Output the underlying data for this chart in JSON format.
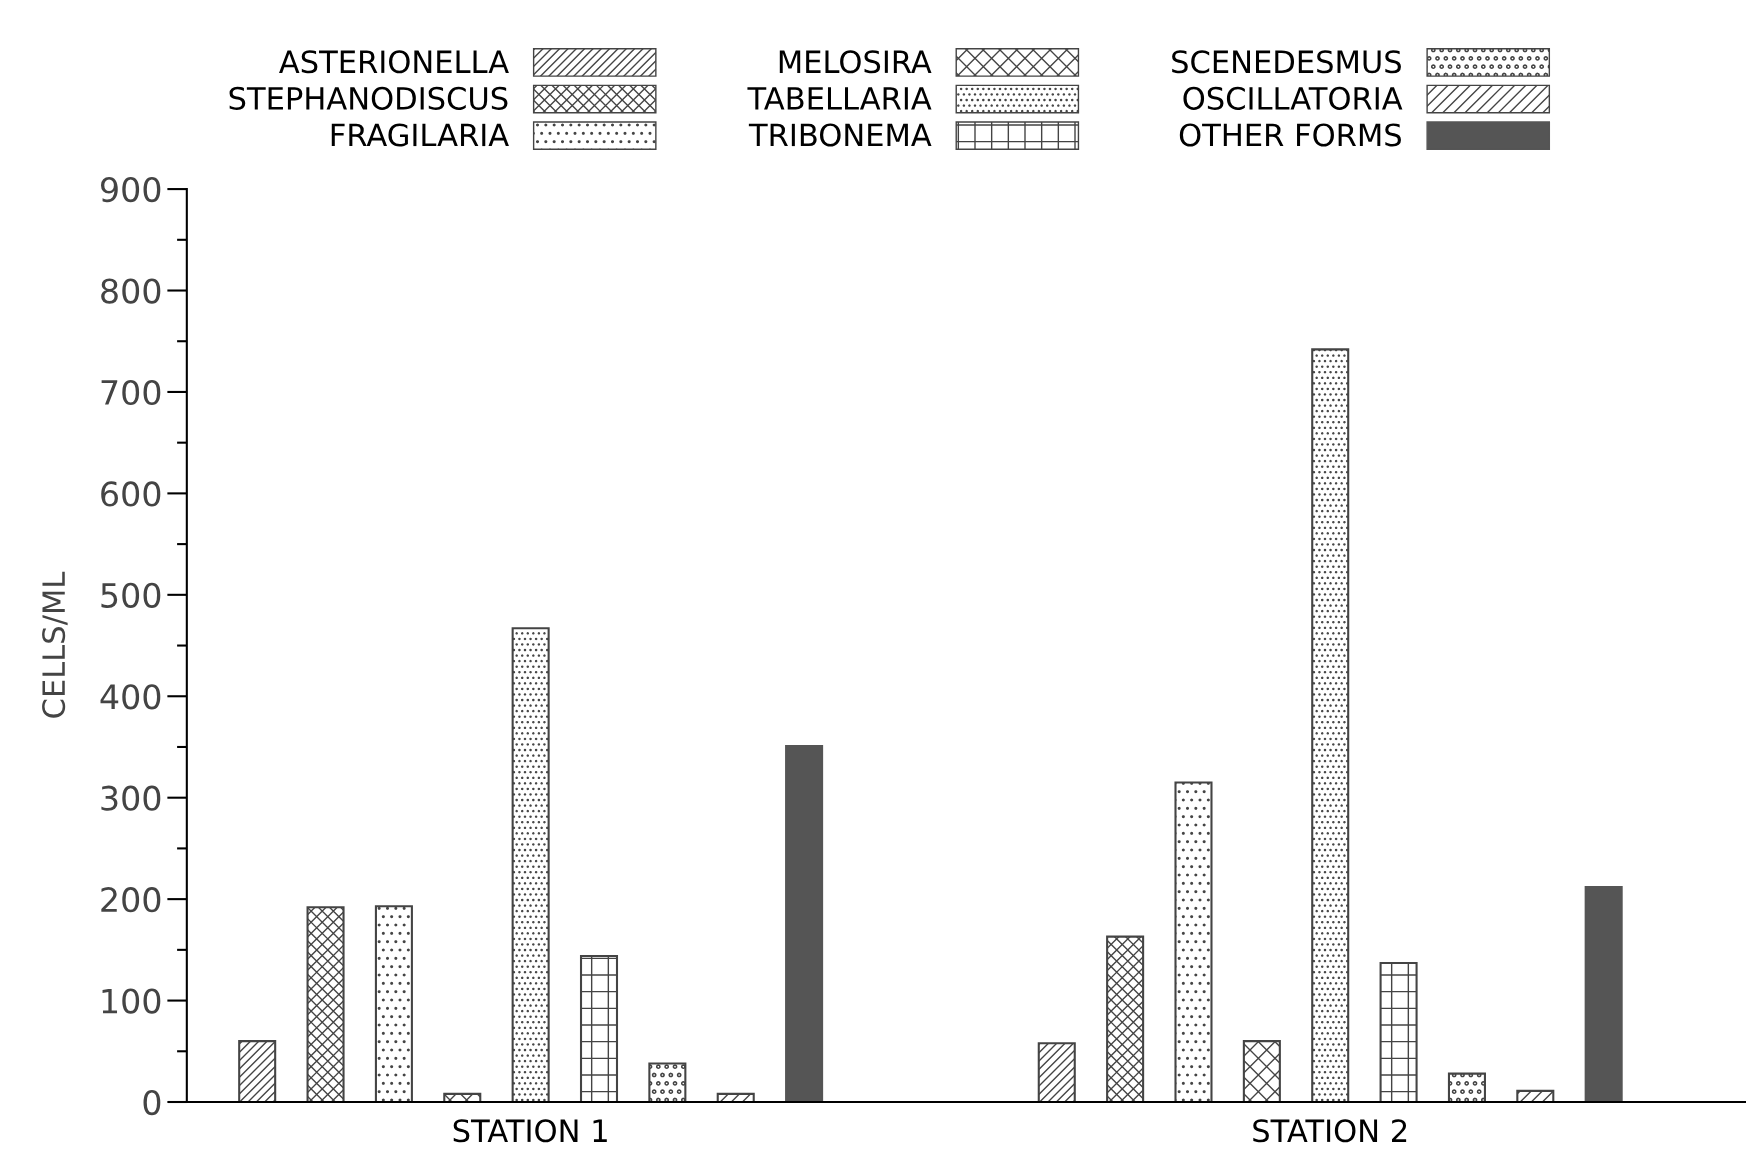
{
  "chart_data": {
    "type": "bar",
    "ylabel": "CELLS/ML",
    "categories": [
      "STATION 1",
      "STATION 2"
    ],
    "series": [
      {
        "name": "ASTERIONELLA",
        "color": "#444444",
        "values": [
          60,
          58
        ]
      },
      {
        "name": "STEPHANODISCUS",
        "color": "#444444",
        "values": [
          192,
          163
        ]
      },
      {
        "name": "FRAGILARIA",
        "color": "#444444",
        "values": [
          193,
          315
        ]
      },
      {
        "name": "MELOSIRA",
        "color": "#444444",
        "values": [
          8,
          60
        ]
      },
      {
        "name": "TABELLARIA",
        "color": "#444444",
        "values": [
          467,
          742
        ]
      },
      {
        "name": "TRIBONEMA",
        "color": "#444444",
        "values": [
          144,
          137
        ]
      },
      {
        "name": "SCENEDESMUS",
        "color": "#444444",
        "values": [
          38,
          28
        ]
      },
      {
        "name": "OSCILLATORIA",
        "color": "#444444",
        "values": [
          8,
          11
        ]
      },
      {
        "name": "OTHER FORMS",
        "color": "#555555",
        "values": [
          351,
          212
        ]
      }
    ],
    "ylim": [
      0,
      900
    ],
    "yticks": [
      0,
      100,
      200,
      300,
      400,
      500,
      600,
      700,
      800,
      900
    ],
    "grid": false,
    "legend": "top"
  }
}
